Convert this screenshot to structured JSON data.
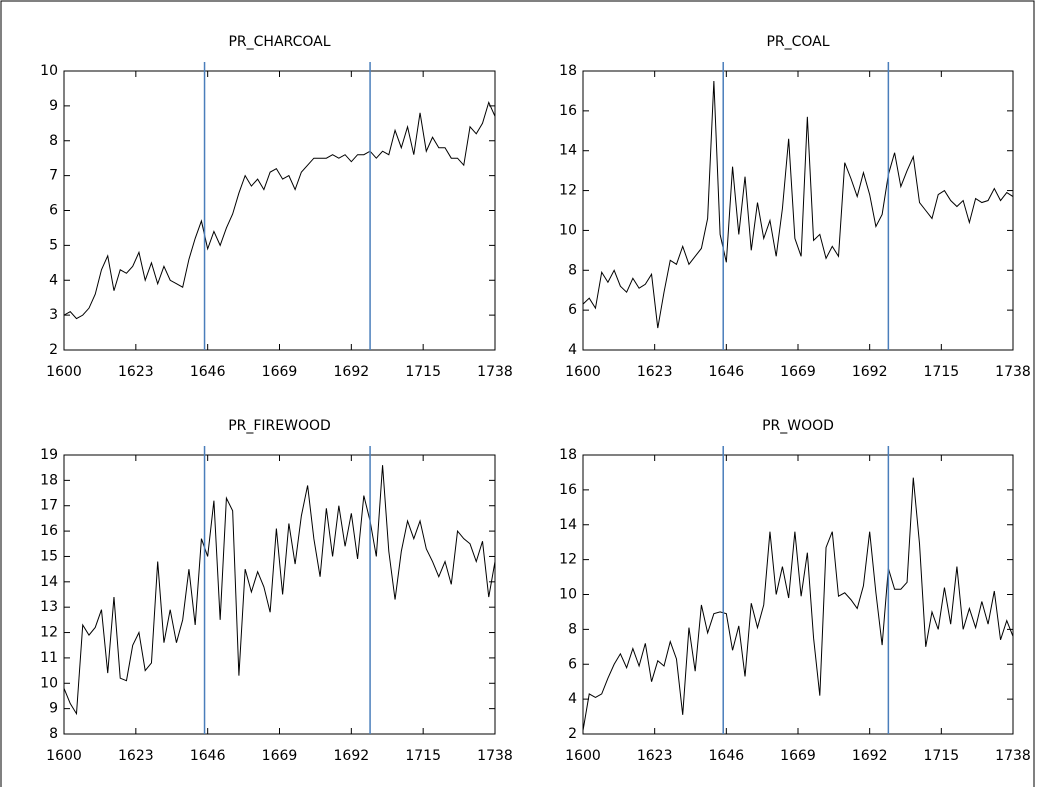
{
  "chart_data": [
    {
      "type": "line",
      "title": "PR_CHARCOAL",
      "x": [
        1600,
        1602,
        1604,
        1606,
        1608,
        1610,
        1612,
        1614,
        1616,
        1618,
        1620,
        1622,
        1624,
        1626,
        1628,
        1630,
        1632,
        1634,
        1636,
        1638,
        1640,
        1642,
        1644,
        1646,
        1648,
        1650,
        1652,
        1654,
        1656,
        1658,
        1660,
        1662,
        1664,
        1666,
        1668,
        1670,
        1672,
        1674,
        1676,
        1678,
        1680,
        1682,
        1684,
        1686,
        1688,
        1690,
        1692,
        1694,
        1696,
        1698,
        1700,
        1702,
        1704,
        1706,
        1708,
        1710,
        1712,
        1714,
        1716,
        1718,
        1720,
        1722,
        1724,
        1726,
        1728,
        1730,
        1732,
        1734,
        1736,
        1738
      ],
      "series": [
        {
          "color": "#000000",
          "values": [
            3.0,
            3.1,
            2.9,
            3.0,
            3.2,
            3.6,
            4.3,
            4.7,
            3.7,
            4.3,
            4.2,
            4.4,
            4.8,
            4.0,
            4.5,
            3.9,
            4.4,
            4.0,
            3.9,
            3.8,
            4.6,
            5.2,
            5.7,
            4.9,
            5.4,
            5.0,
            5.5,
            5.9,
            6.5,
            7.0,
            6.7,
            6.9,
            6.6,
            7.1,
            7.2,
            6.9,
            7.0,
            6.6,
            7.1,
            7.3,
            7.5,
            7.5,
            7.5,
            7.6,
            7.5,
            7.6,
            7.4,
            7.6,
            7.6,
            7.7,
            7.5,
            7.7,
            7.6,
            8.3,
            7.8,
            8.4,
            7.6,
            8.8,
            7.7,
            8.1,
            7.8,
            7.8,
            7.5,
            7.5,
            7.3,
            8.4,
            8.2,
            8.5,
            9.1,
            8.7
          ]
        }
      ],
      "xlim": [
        1600,
        1738
      ],
      "xticks": [
        1600,
        1623,
        1646,
        1669,
        1692,
        1715,
        1738
      ],
      "ylim": [
        2,
        10
      ],
      "yticks": [
        2,
        3,
        4,
        5,
        6,
        7,
        8,
        9,
        10
      ],
      "vlines": [
        1645,
        1698
      ],
      "vline_color": "#4a7ebb"
    },
    {
      "type": "line",
      "title": "PR_COAL",
      "x": [
        1600,
        1602,
        1604,
        1606,
        1608,
        1610,
        1612,
        1614,
        1616,
        1618,
        1620,
        1622,
        1624,
        1626,
        1628,
        1630,
        1632,
        1634,
        1636,
        1638,
        1640,
        1642,
        1644,
        1646,
        1648,
        1650,
        1652,
        1654,
        1656,
        1658,
        1660,
        1662,
        1664,
        1666,
        1668,
        1670,
        1672,
        1674,
        1676,
        1678,
        1680,
        1682,
        1684,
        1686,
        1688,
        1690,
        1692,
        1694,
        1696,
        1698,
        1700,
        1702,
        1704,
        1706,
        1708,
        1710,
        1712,
        1714,
        1716,
        1718,
        1720,
        1722,
        1724,
        1726,
        1728,
        1730,
        1732,
        1734,
        1736,
        1738
      ],
      "series": [
        {
          "color": "#000000",
          "values": [
            6.3,
            6.6,
            6.1,
            7.9,
            7.4,
            8.0,
            7.2,
            6.9,
            7.6,
            7.1,
            7.3,
            7.8,
            5.1,
            6.9,
            8.5,
            8.3,
            9.2,
            8.3,
            8.7,
            9.1,
            10.6,
            17.5,
            9.8,
            8.4,
            13.2,
            9.8,
            12.7,
            9.0,
            11.4,
            9.6,
            10.5,
            8.7,
            11.1,
            14.6,
            9.6,
            8.7,
            15.7,
            9.5,
            9.8,
            8.6,
            9.2,
            8.7,
            13.4,
            12.6,
            11.7,
            12.9,
            11.8,
            10.2,
            10.8,
            12.8,
            13.9,
            12.2,
            13.0,
            13.7,
            11.4,
            11.0,
            10.6,
            11.8,
            12.0,
            11.5,
            11.2,
            11.5,
            10.4,
            11.6,
            11.4,
            11.5,
            12.1,
            11.5,
            11.9,
            11.7
          ]
        }
      ],
      "xlim": [
        1600,
        1738
      ],
      "xticks": [
        1600,
        1623,
        1646,
        1669,
        1692,
        1715,
        1738
      ],
      "ylim": [
        4,
        18
      ],
      "yticks": [
        4,
        6,
        8,
        10,
        12,
        14,
        16,
        18
      ],
      "vlines": [
        1645,
        1698
      ],
      "vline_color": "#4a7ebb"
    },
    {
      "type": "line",
      "title": "PR_FIREWOOD",
      "x": [
        1600,
        1602,
        1604,
        1606,
        1608,
        1610,
        1612,
        1614,
        1616,
        1618,
        1620,
        1622,
        1624,
        1626,
        1628,
        1630,
        1632,
        1634,
        1636,
        1638,
        1640,
        1642,
        1644,
        1646,
        1648,
        1650,
        1652,
        1654,
        1656,
        1658,
        1660,
        1662,
        1664,
        1666,
        1668,
        1670,
        1672,
        1674,
        1676,
        1678,
        1680,
        1682,
        1684,
        1686,
        1688,
        1690,
        1692,
        1694,
        1696,
        1698,
        1700,
        1702,
        1704,
        1706,
        1708,
        1710,
        1712,
        1714,
        1716,
        1718,
        1720,
        1722,
        1724,
        1726,
        1728,
        1730,
        1732,
        1734,
        1736,
        1738
      ],
      "series": [
        {
          "color": "#000000",
          "values": [
            9.8,
            9.2,
            8.8,
            12.3,
            11.9,
            12.2,
            12.9,
            10.4,
            13.4,
            10.2,
            10.1,
            11.5,
            12.0,
            10.5,
            10.8,
            14.8,
            11.6,
            12.9,
            11.6,
            12.5,
            14.5,
            12.3,
            15.7,
            15.0,
            17.2,
            12.5,
            17.3,
            16.8,
            10.3,
            14.5,
            13.6,
            14.4,
            13.8,
            12.8,
            16.1,
            13.5,
            16.3,
            14.7,
            16.6,
            17.8,
            15.7,
            14.2,
            16.9,
            15.0,
            17.0,
            15.4,
            16.7,
            14.9,
            17.4,
            16.4,
            15.0,
            18.6,
            15.2,
            13.3,
            15.2,
            16.4,
            15.7,
            16.4,
            15.3,
            14.8,
            14.2,
            14.8,
            13.9,
            16.0,
            15.7,
            15.5,
            14.8,
            15.6,
            13.4,
            14.8
          ]
        }
      ],
      "xlim": [
        1600,
        1738
      ],
      "xticks": [
        1600,
        1623,
        1646,
        1669,
        1692,
        1715,
        1738
      ],
      "ylim": [
        8,
        19
      ],
      "yticks": [
        8,
        9,
        10,
        11,
        12,
        13,
        14,
        15,
        16,
        17,
        18,
        19
      ],
      "vlines": [
        1645,
        1698
      ],
      "vline_color": "#4a7ebb"
    },
    {
      "type": "line",
      "title": "PR_WOOD",
      "x": [
        1600,
        1602,
        1604,
        1606,
        1608,
        1610,
        1612,
        1614,
        1616,
        1618,
        1620,
        1622,
        1624,
        1626,
        1628,
        1630,
        1632,
        1634,
        1636,
        1638,
        1640,
        1642,
        1644,
        1646,
        1648,
        1650,
        1652,
        1654,
        1656,
        1658,
        1660,
        1662,
        1664,
        1666,
        1668,
        1670,
        1672,
        1674,
        1676,
        1678,
        1680,
        1682,
        1684,
        1686,
        1688,
        1690,
        1692,
        1694,
        1696,
        1698,
        1700,
        1702,
        1704,
        1706,
        1708,
        1710,
        1712,
        1714,
        1716,
        1718,
        1720,
        1722,
        1724,
        1726,
        1728,
        1730,
        1732,
        1734,
        1736,
        1738
      ],
      "series": [
        {
          "color": "#000000",
          "values": [
            2.2,
            4.3,
            4.1,
            4.3,
            5.2,
            6.0,
            6.6,
            5.8,
            6.9,
            5.9,
            7.2,
            5.0,
            6.2,
            5.9,
            7.3,
            6.3,
            3.1,
            8.1,
            5.6,
            9.4,
            7.8,
            8.9,
            9.0,
            8.9,
            6.8,
            8.2,
            5.3,
            9.5,
            8.1,
            9.4,
            13.6,
            10.0,
            11.6,
            9.8,
            13.6,
            9.9,
            12.4,
            7.5,
            4.2,
            12.7,
            13.6,
            9.9,
            10.1,
            9.7,
            9.2,
            10.5,
            13.6,
            10.1,
            7.1,
            11.5,
            10.3,
            10.3,
            10.7,
            16.7,
            12.9,
            7.0,
            9.0,
            8.0,
            10.4,
            8.3,
            11.6,
            8.0,
            9.2,
            8.1,
            9.6,
            8.3,
            10.2,
            7.4,
            8.5,
            7.6
          ]
        }
      ],
      "xlim": [
        1600,
        1738
      ],
      "xticks": [
        1600,
        1623,
        1646,
        1669,
        1692,
        1715,
        1738
      ],
      "ylim": [
        2,
        18
      ],
      "yticks": [
        2,
        4,
        6,
        8,
        10,
        12,
        14,
        16,
        18
      ],
      "vlines": [
        1645,
        1698
      ],
      "vline_color": "#4a7ebb"
    }
  ]
}
